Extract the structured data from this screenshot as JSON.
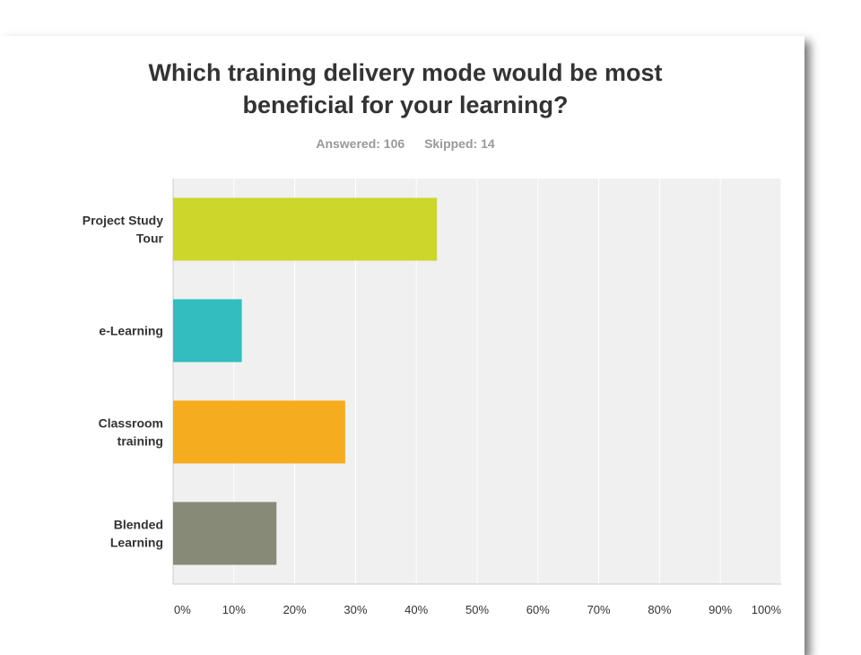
{
  "header": {
    "title_line1": "Which training delivery mode would be most",
    "title_line2": "beneficial for your learning?",
    "answered": "Answered: 106",
    "skipped": "Skipped: 14"
  },
  "chart_data": {
    "type": "bar",
    "orientation": "horizontal",
    "title": "Which training delivery mode would be most beneficial for your learning?",
    "categories": [
      [
        "Project Study",
        "Tour"
      ],
      [
        "e-Learning"
      ],
      [
        "Classroom",
        "training"
      ],
      [
        "Blended",
        "Learning"
      ]
    ],
    "values": [
      43.4,
      11.3,
      28.3,
      17.0
    ],
    "colors": [
      "#cdd62a",
      "#33bdbf",
      "#f5ad1f",
      "#888a78"
    ],
    "xlim": [
      0,
      100
    ],
    "x_ticks": [
      "0%",
      "10%",
      "20%",
      "30%",
      "40%",
      "50%",
      "60%",
      "70%",
      "80%",
      "90%",
      "100%"
    ],
    "grid": true,
    "xlabel": "",
    "ylabel": ""
  }
}
